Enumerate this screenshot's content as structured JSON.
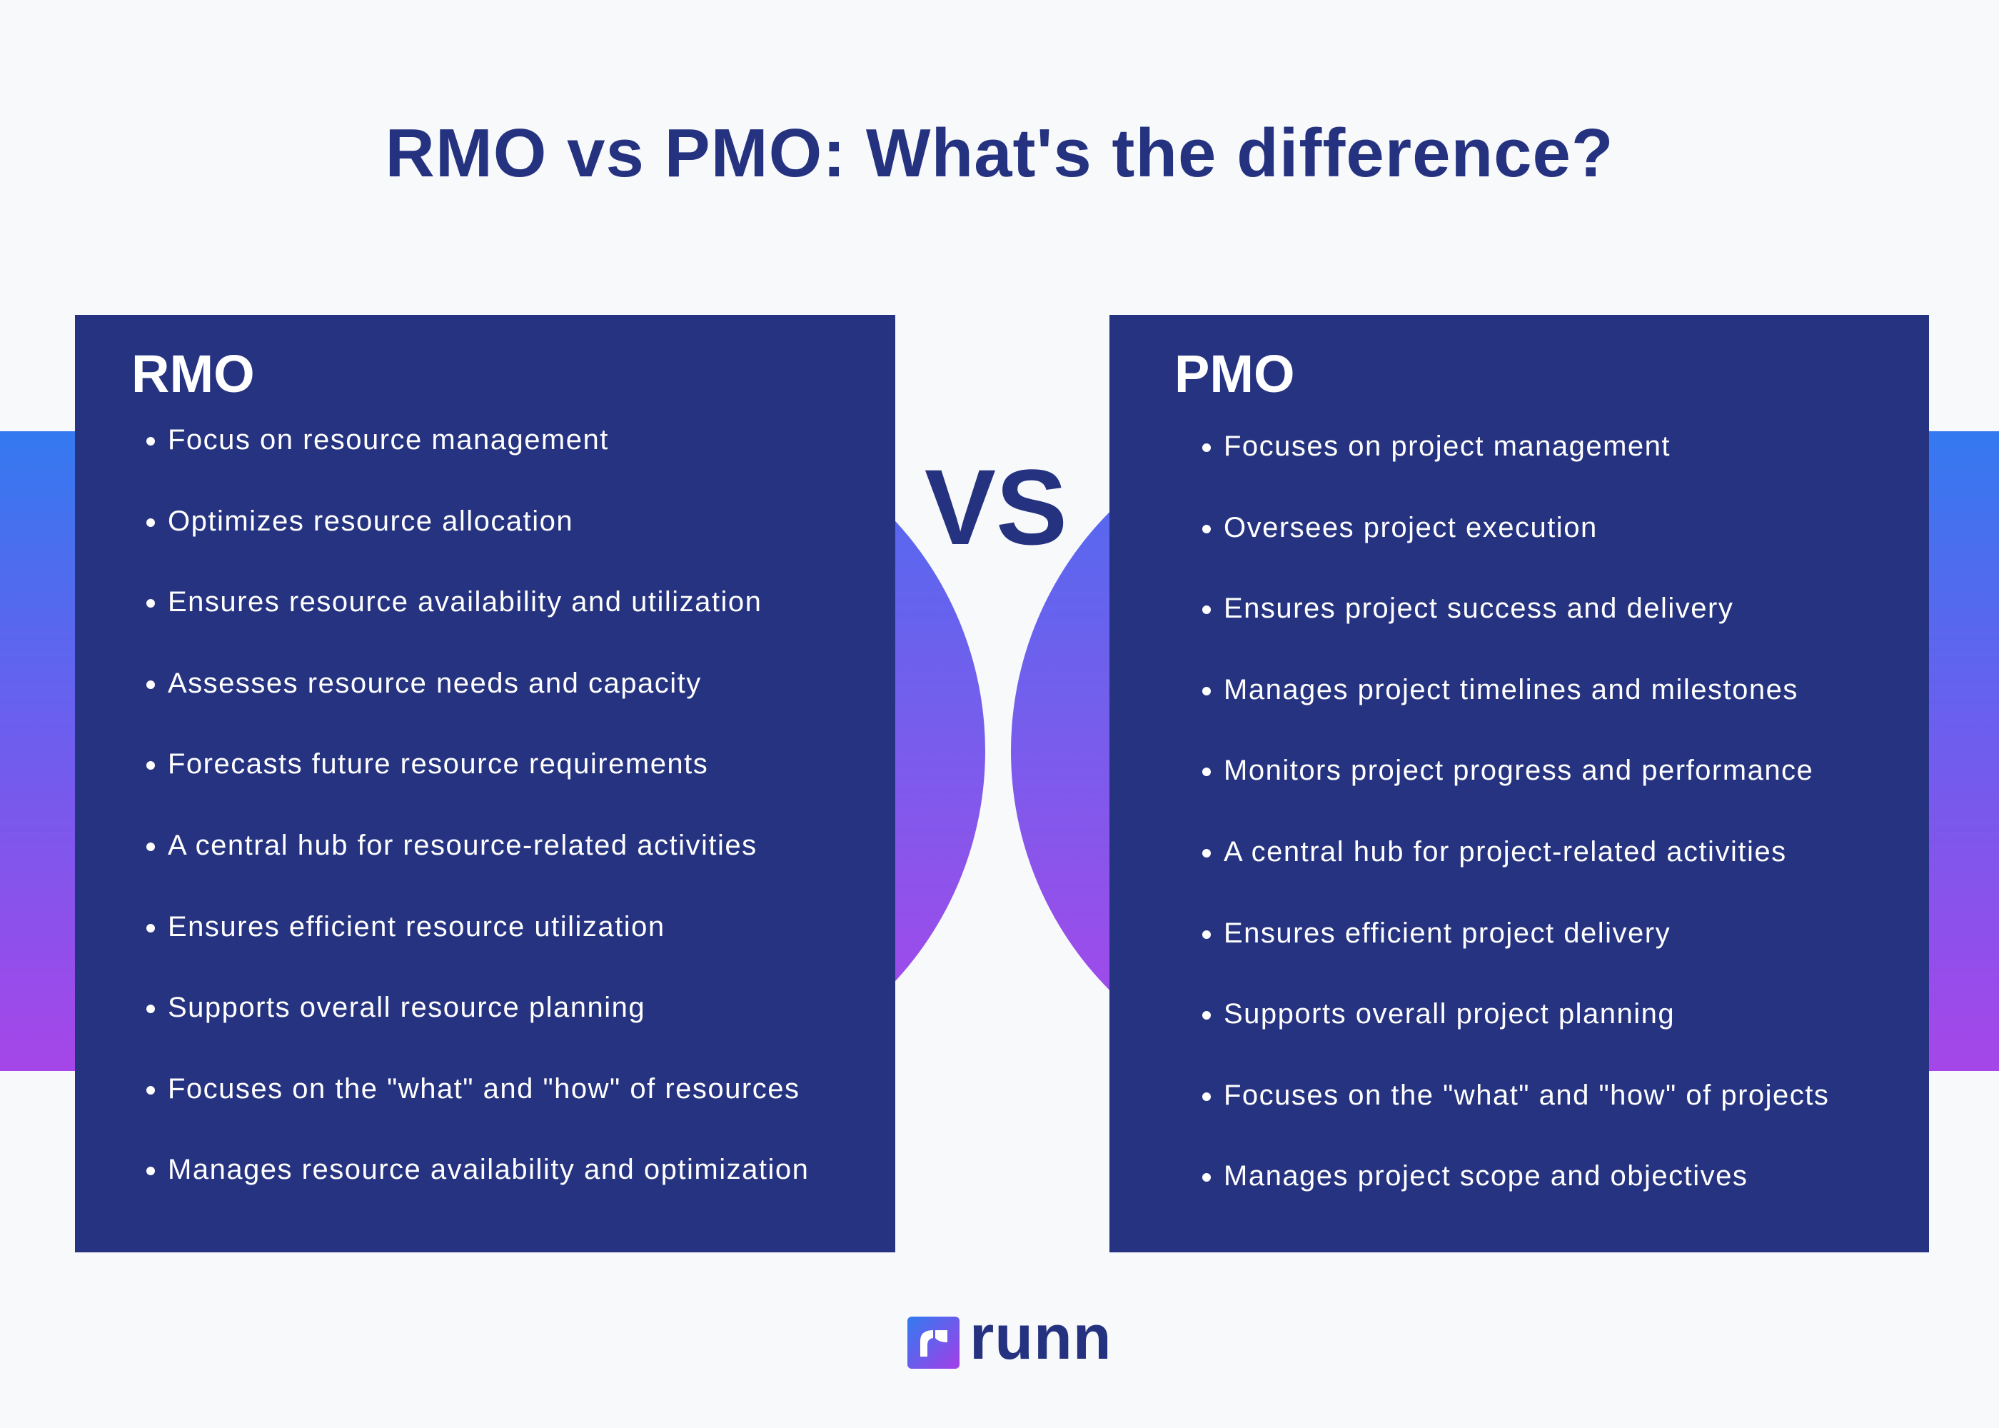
{
  "title": "RMO vs PMO: What's the difference?",
  "vs_label": "VS",
  "colors": {
    "navy": "#263380",
    "title": "#25327f",
    "gradient_start": "#3479ef",
    "gradient_end": "#a646e8",
    "background": "#f7f9fb"
  },
  "rmo": {
    "heading": "RMO",
    "items": [
      "Focus on resource management",
      "Optimizes resource allocation",
      "Ensures resource availability and utilization",
      "Assesses resource needs and capacity",
      "Forecasts future resource requirements",
      "A central hub for resource-related activities",
      "Ensures efficient resource utilization",
      "Supports overall resource planning",
      "Focuses on the \"what\" and \"how\" of resources",
      "Manages resource availability and optimization"
    ]
  },
  "pmo": {
    "heading": "PMO",
    "items": [
      "Focuses on project management",
      "Oversees project execution",
      "Ensures project success and delivery",
      "Manages project timelines and milestones",
      "Monitors project progress and performance",
      "A central hub for project-related activities",
      "Ensures efficient project delivery",
      "Supports overall project planning",
      "Focuses on the \"what\" and \"how\" of projects",
      "Manages project scope and objectives"
    ]
  },
  "logo": {
    "text": "runn",
    "icon": "runn-r-logo-icon"
  }
}
